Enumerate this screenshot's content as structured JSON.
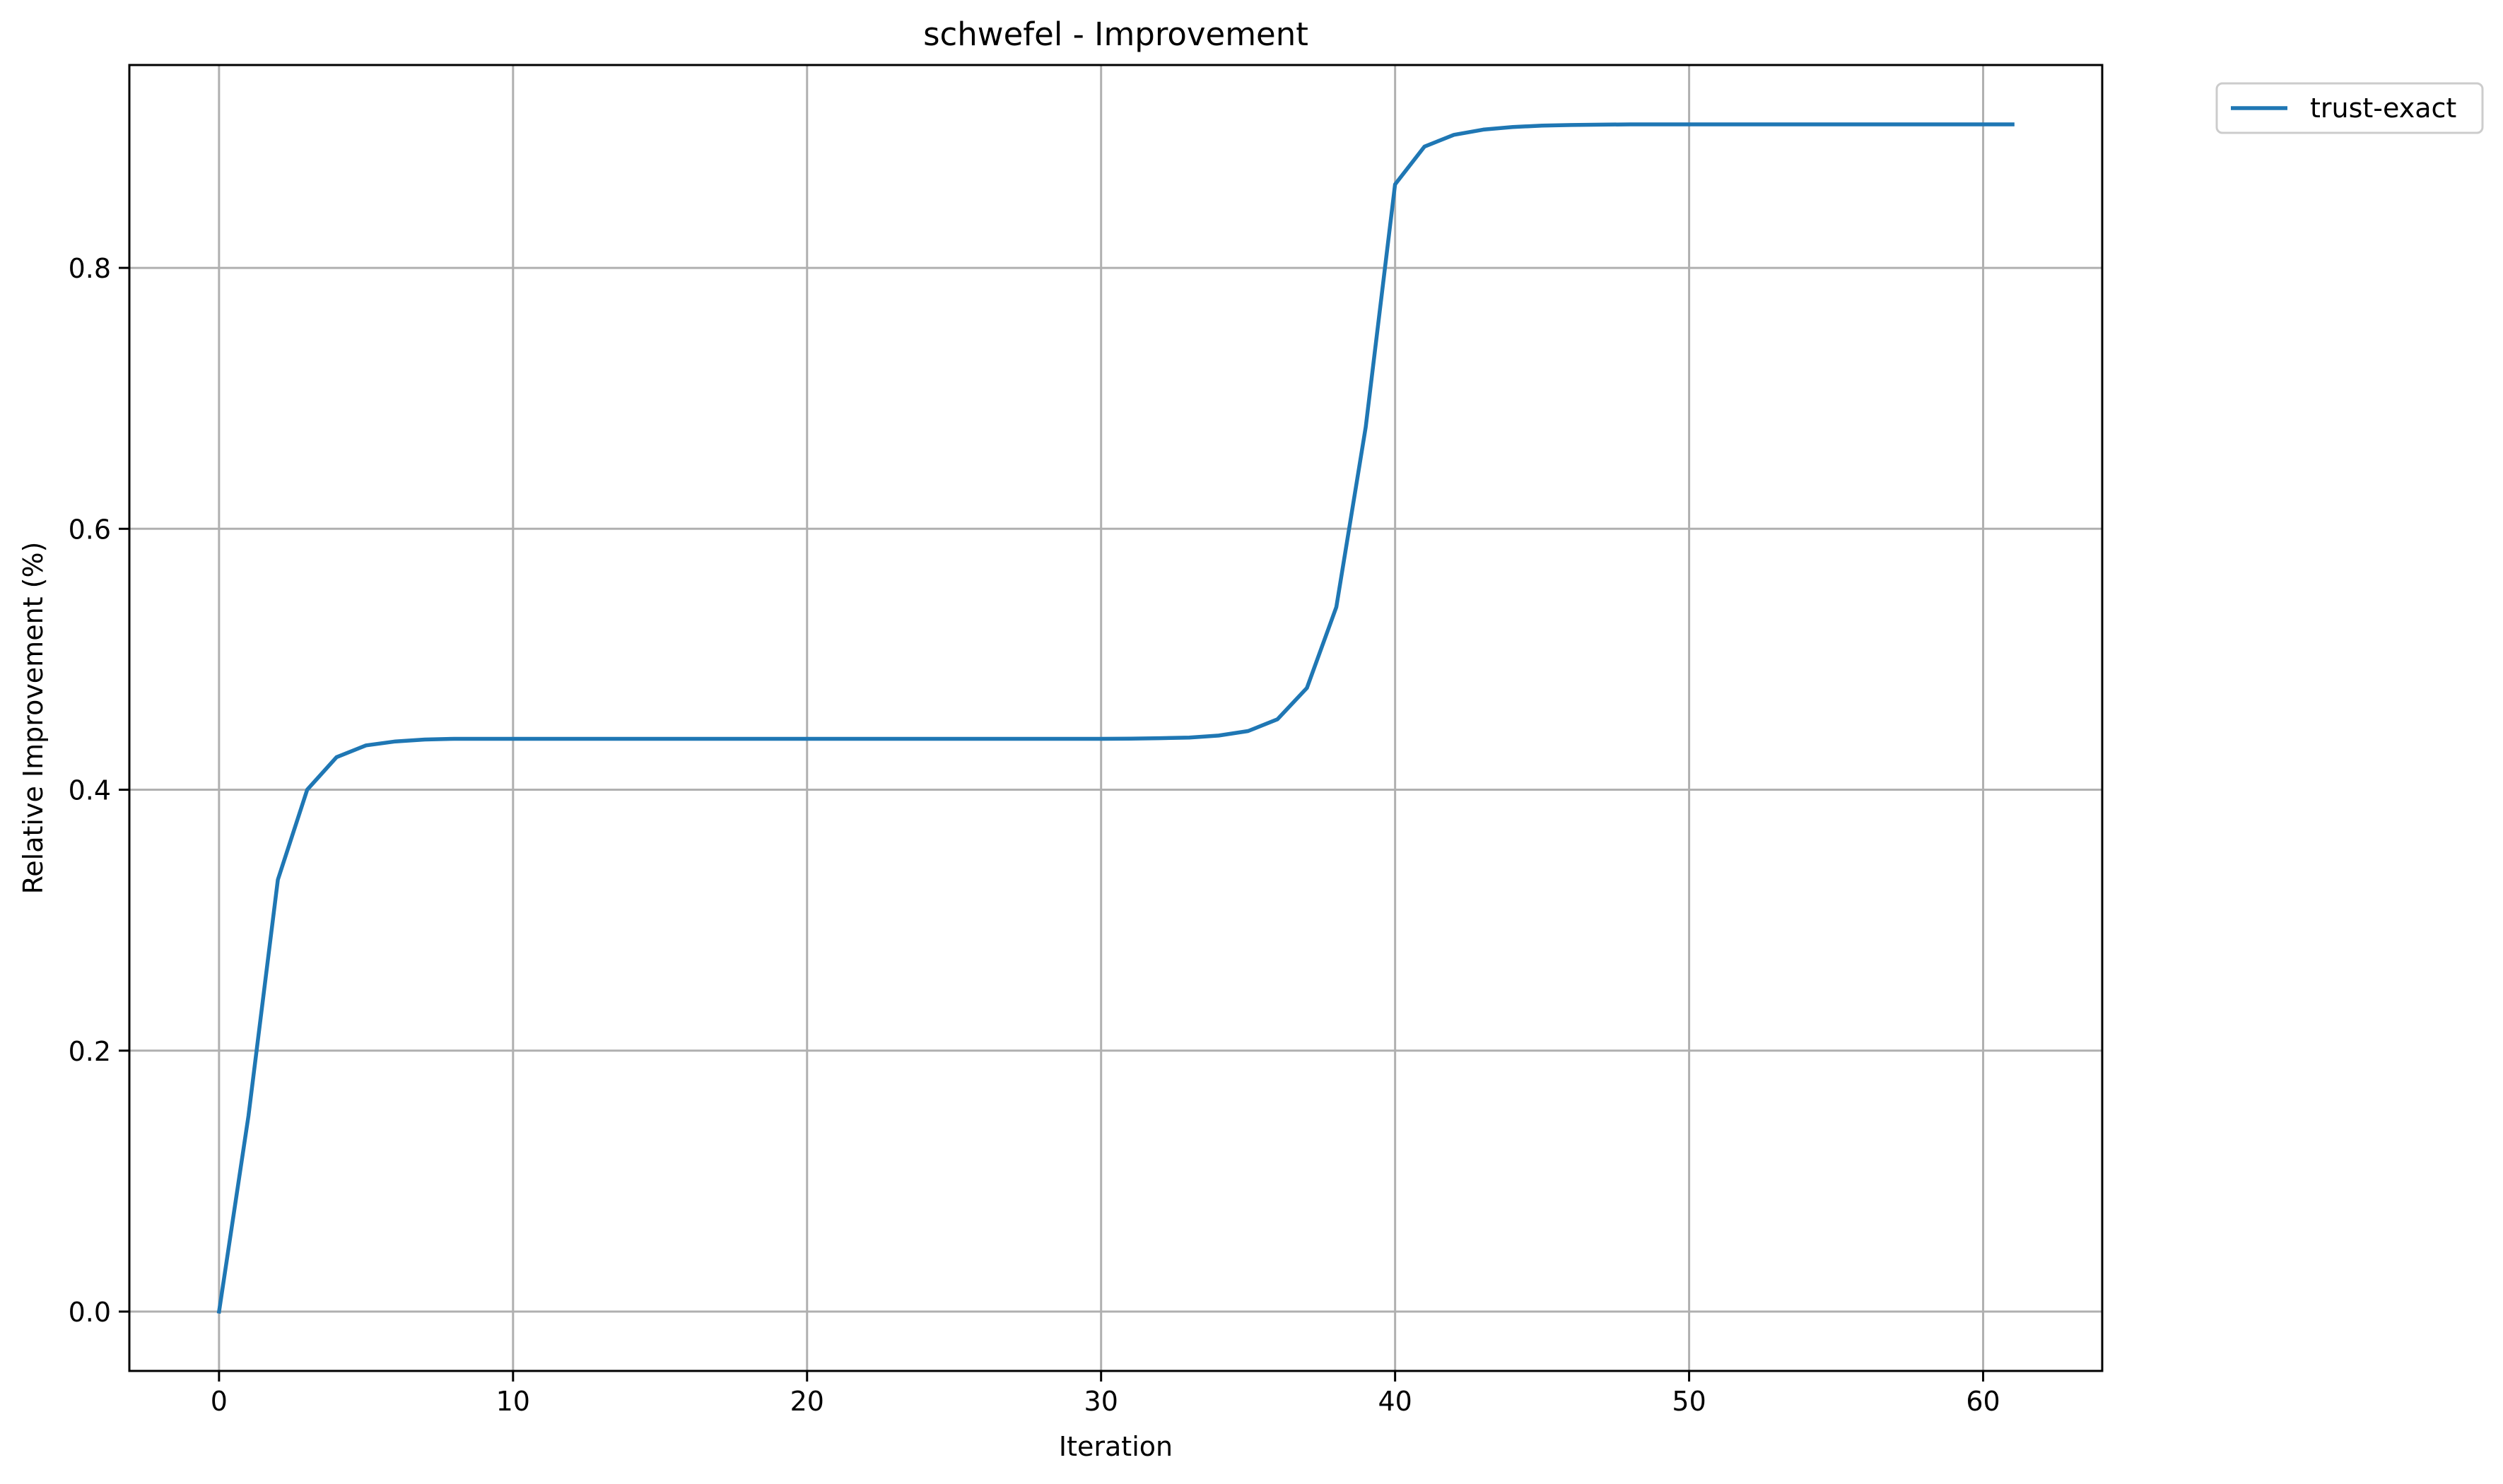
{
  "chart_data": {
    "type": "line",
    "title": "schwefel - Improvement",
    "xlabel": "Iteration",
    "ylabel": "Relative Improvement (%)",
    "xlim": [
      -3.05,
      64.05
    ],
    "ylim": [
      -0.0455,
      0.9555
    ],
    "xticks": [
      0,
      10,
      20,
      30,
      40,
      50,
      60
    ],
    "yticks": [
      0.0,
      0.2,
      0.4,
      0.6,
      0.8
    ],
    "xtick_labels": [
      "0",
      "10",
      "20",
      "30",
      "40",
      "50",
      "60"
    ],
    "ytick_labels": [
      "0.0",
      "0.2",
      "0.4",
      "0.6",
      "0.8"
    ],
    "grid": true,
    "legend_position": "outside-top-right",
    "series": [
      {
        "name": "trust-exact",
        "color": "#1f77b4",
        "x": [
          0,
          1,
          2,
          3,
          4,
          5,
          6,
          7,
          8,
          9,
          10,
          11,
          12,
          13,
          14,
          15,
          16,
          17,
          18,
          19,
          20,
          21,
          22,
          23,
          24,
          25,
          26,
          27,
          28,
          29,
          30,
          31,
          32,
          33,
          34,
          35,
          36,
          37,
          38,
          39,
          40,
          41,
          42,
          43,
          44,
          45,
          46,
          47,
          48,
          49,
          50,
          51,
          52,
          53,
          54,
          55,
          56,
          57,
          58,
          59,
          60,
          61
        ],
        "y": [
          0.0,
          0.15,
          0.331,
          0.4,
          0.425,
          0.434,
          0.437,
          0.4385,
          0.439,
          0.439,
          0.439,
          0.439,
          0.439,
          0.439,
          0.439,
          0.439,
          0.439,
          0.439,
          0.439,
          0.439,
          0.439,
          0.439,
          0.439,
          0.439,
          0.439,
          0.439,
          0.439,
          0.439,
          0.439,
          0.439,
          0.439,
          0.4392,
          0.4395,
          0.44,
          0.4415,
          0.445,
          0.454,
          0.478,
          0.54,
          0.678,
          0.864,
          0.893,
          0.902,
          0.906,
          0.908,
          0.909,
          0.9095,
          0.9098,
          0.91,
          0.91,
          0.91,
          0.91,
          0.91,
          0.91,
          0.91,
          0.91,
          0.91,
          0.91,
          0.91,
          0.91,
          0.91,
          0.91
        ]
      }
    ]
  }
}
